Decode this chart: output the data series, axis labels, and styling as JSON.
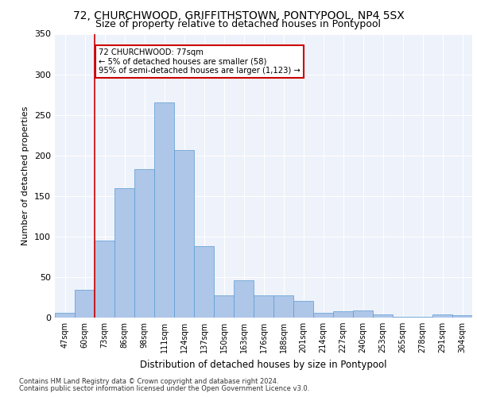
{
  "title1": "72, CHURCHWOOD, GRIFFITHSTOWN, PONTYPOOL, NP4 5SX",
  "title2": "Size of property relative to detached houses in Pontypool",
  "xlabel": "Distribution of detached houses by size in Pontypool",
  "ylabel": "Number of detached properties",
  "categories": [
    "47sqm",
    "60sqm",
    "73sqm",
    "86sqm",
    "98sqm",
    "111sqm",
    "124sqm",
    "137sqm",
    "150sqm",
    "163sqm",
    "176sqm",
    "188sqm",
    "201sqm",
    "214sqm",
    "227sqm",
    "240sqm",
    "253sqm",
    "265sqm",
    "278sqm",
    "291sqm",
    "304sqm"
  ],
  "values": [
    6,
    34,
    95,
    160,
    183,
    265,
    207,
    88,
    27,
    46,
    27,
    27,
    21,
    6,
    8,
    9,
    4,
    1,
    1,
    4,
    3
  ],
  "bar_color": "#aec6e8",
  "bar_edge_color": "#5a9bd4",
  "annotation_line_bin": 2,
  "annotation_text_line1": "72 CHURCHWOOD: 77sqm",
  "annotation_text_line2": "← 5% of detached houses are smaller (58)",
  "annotation_text_line3": "95% of semi-detached houses are larger (1,123) →",
  "annotation_box_color": "#ffffff",
  "annotation_box_edge_color": "#cc0000",
  "vline_color": "#cc0000",
  "footer1": "Contains HM Land Registry data © Crown copyright and database right 2024.",
  "footer2": "Contains public sector information licensed under the Open Government Licence v3.0.",
  "plot_bg_color": "#eef2fa",
  "ylim": [
    0,
    350
  ],
  "title1_fontsize": 10,
  "title2_fontsize": 9,
  "xlabel_fontsize": 8.5,
  "ylabel_fontsize": 8
}
